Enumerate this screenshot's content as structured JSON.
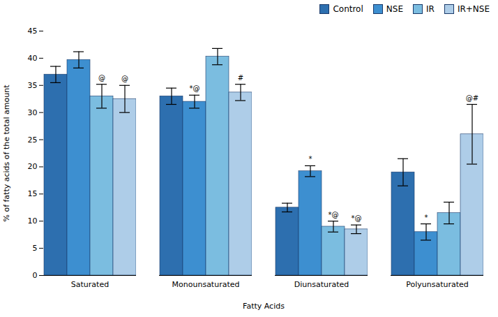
{
  "chart_data": {
    "type": "bar",
    "categories": [
      "Saturated",
      "Monounsaturated",
      "Diunsaturated",
      "Polyunsaturated"
    ],
    "series": [
      {
        "name": "Control",
        "color": "#2D6FAF",
        "values": [
          37.0,
          33.0,
          12.5,
          19.0
        ],
        "errors": [
          1.5,
          1.5,
          0.8,
          2.5
        ],
        "annotations": [
          null,
          null,
          null,
          null
        ]
      },
      {
        "name": "NSE",
        "color": "#3D8FD0",
        "values": [
          39.7,
          32.0,
          19.2,
          8.0
        ],
        "errors": [
          1.5,
          1.2,
          1.0,
          1.5
        ],
        "annotations": [
          null,
          "*@",
          "*",
          "*"
        ]
      },
      {
        "name": "IR",
        "color": "#7BBDE0",
        "values": [
          33.0,
          40.3,
          9.0,
          11.5
        ],
        "errors": [
          2.2,
          1.5,
          1.0,
          2.0
        ],
        "annotations": [
          "@",
          null,
          "*@",
          null
        ]
      },
      {
        "name": "IR+NSE",
        "color": "#AECDE8",
        "values": [
          32.5,
          33.7,
          8.5,
          26.0
        ],
        "errors": [
          2.5,
          1.5,
          0.8,
          5.5
        ],
        "annotations": [
          "@",
          "#",
          "*@",
          "@#"
        ]
      }
    ],
    "xlabel": "Fatty Acids",
    "ylabel": "% of fatty acids of the total amount",
    "ylim": [
      0,
      45
    ],
    "yticks": [
      0,
      5,
      10,
      15,
      20,
      25,
      30,
      35,
      40,
      45
    ],
    "grid": false,
    "legend": "upper right"
  }
}
